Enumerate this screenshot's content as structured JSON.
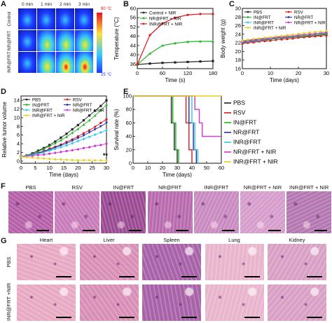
{
  "panels": {
    "A": {
      "label": "A",
      "times": [
        "0 min",
        "1 min",
        "2 min",
        "3 min"
      ],
      "rows": [
        "Control",
        "NR@FRT",
        "INR@FRT"
      ],
      "scale_max": "80 °C",
      "scale_min": "25 °C",
      "colors": {
        "cold": "#1e3cff",
        "mid": "#36c8ff",
        "warm": "#ffe040",
        "hot": "#e0141c"
      }
    },
    "B": {
      "label": "B"
    },
    "C": {
      "label": "C"
    },
    "D": {
      "label": "D"
    },
    "E": {
      "label": "E"
    },
    "F": {
      "label": "F",
      "groups": [
        "PBS",
        "RSV",
        "IN@FRT",
        "NR@FRT",
        "INR@FRT",
        "NR@FRT + NIR",
        "INR@FRT + NIR"
      ],
      "stain_colors": [
        "#b45fa8",
        "#c77bb8",
        "#9a4a92",
        "#b86aae",
        "#c88ac0",
        "#d59ccc",
        "#b376b0"
      ]
    },
    "G": {
      "label": "G",
      "organs": [
        "Heart",
        "Liver",
        "Spleen",
        "Lung",
        "Kidney"
      ],
      "rows": [
        "PBS",
        "INR@FRT +NIR"
      ],
      "stain_colors": [
        "#e8a9c2",
        "#d88fb6",
        "#a862a8",
        "#e9b5cc",
        "#d7a0c4"
      ]
    }
  },
  "chart_data": [
    {
      "panel": "B",
      "type": "line",
      "xlabel": "Time (s)",
      "ylabel": "Temperature (°C)",
      "xlim": [
        0,
        180
      ],
      "ylim": [
        34,
        60
      ],
      "xticks": [
        0,
        60,
        120,
        180
      ],
      "yticks": [
        36,
        40,
        44,
        48,
        52,
        56,
        60
      ],
      "legend_position": "top-left",
      "series": [
        {
          "name": "Control + NIR",
          "color": "#222222",
          "marker": "square",
          "x": [
            0,
            30,
            60,
            90,
            120,
            150,
            180
          ],
          "y": [
            35.8,
            36.2,
            36.5,
            36.7,
            36.9,
            37.1,
            37.3
          ]
        },
        {
          "name": "NR@FRT + NIR",
          "color": "#22b422",
          "marker": "triangle",
          "x": [
            0,
            30,
            60,
            90,
            120,
            150,
            180
          ],
          "y": [
            35.8,
            40.5,
            44.0,
            45.0,
            45.6,
            45.8,
            45.8
          ]
        },
        {
          "name": "INR@FRT + NIR",
          "color": "#e0141c",
          "marker": "circle",
          "x": [
            0,
            30,
            60,
            90,
            120,
            150,
            180
          ],
          "y": [
            35.8,
            48.5,
            53.5,
            56.0,
            57.2,
            57.6,
            57.6
          ]
        }
      ]
    },
    {
      "panel": "C",
      "type": "line",
      "xlabel": "Time (days)",
      "ylabel": "Body weight (g)",
      "xlim": [
        0,
        30
      ],
      "ylim": [
        16,
        30
      ],
      "xticks": [
        0,
        10,
        20,
        30
      ],
      "yticks": [
        16,
        18,
        20,
        22,
        24,
        26,
        28,
        30
      ],
      "legend_position": "top",
      "series": [
        {
          "name": "PBS",
          "color": "#222222",
          "x": [
            0,
            2,
            4,
            6,
            8,
            10,
            12,
            14,
            16,
            18,
            20,
            22,
            24,
            26,
            28,
            30
          ],
          "y": [
            22.0,
            22.2,
            22.3,
            22.5,
            22.6,
            22.8,
            23.0,
            23.1,
            23.2,
            23.3,
            23.4,
            23.5,
            23.6,
            23.7,
            23.8,
            24.0
          ]
        },
        {
          "name": "RSV",
          "color": "#e0141c",
          "x": [
            0,
            2,
            4,
            6,
            8,
            10,
            12,
            14,
            16,
            18,
            20,
            22,
            24,
            26,
            28,
            30
          ],
          "y": [
            21.8,
            22.0,
            22.1,
            22.3,
            22.4,
            22.5,
            22.7,
            22.8,
            22.9,
            23.0,
            23.2,
            23.3,
            23.4,
            23.5,
            23.6,
            23.7
          ]
        },
        {
          "name": "IN@FRT",
          "color": "#22b422",
          "x": [
            0,
            2,
            4,
            6,
            8,
            10,
            12,
            14,
            16,
            18,
            20,
            22,
            24,
            26,
            28,
            30
          ],
          "y": [
            22.2,
            22.4,
            22.5,
            22.6,
            22.8,
            22.9,
            23.0,
            23.2,
            23.3,
            23.4,
            23.5,
            23.6,
            23.8,
            23.9,
            24.0,
            24.1
          ]
        },
        {
          "name": "NR@FRT",
          "color": "#1f2fa8",
          "x": [
            0,
            2,
            4,
            6,
            8,
            10,
            12,
            14,
            16,
            18,
            20,
            22,
            24,
            26,
            28,
            30
          ],
          "y": [
            22.4,
            22.6,
            22.7,
            22.9,
            23.0,
            23.1,
            23.3,
            23.4,
            23.5,
            23.6,
            23.8,
            23.9,
            24.0,
            24.1,
            24.2,
            24.3
          ]
        },
        {
          "name": "INR@FRT",
          "color": "#2ec8e8",
          "x": [
            0,
            2,
            4,
            6,
            8,
            10,
            12,
            14,
            16,
            18,
            20,
            22,
            24,
            26,
            28,
            30
          ],
          "y": [
            22.1,
            22.3,
            22.5,
            22.6,
            22.8,
            23.0,
            23.1,
            23.3,
            23.4,
            23.6,
            23.7,
            23.8,
            24.0,
            24.1,
            24.2,
            24.4
          ]
        },
        {
          "name": "NR@FRT + NIR",
          "color": "#d431d4",
          "x": [
            0,
            2,
            4,
            6,
            8,
            10,
            12,
            14,
            16,
            18,
            20,
            22,
            24,
            26,
            28,
            30
          ],
          "y": [
            22.3,
            22.5,
            22.6,
            22.8,
            22.9,
            23.1,
            23.2,
            23.3,
            23.5,
            23.6,
            23.7,
            23.9,
            24.0,
            24.1,
            24.3,
            24.4
          ]
        },
        {
          "name": "INR@FRT + NIR",
          "color": "#e6d21e",
          "x": [
            0,
            2,
            4,
            6,
            8,
            10,
            12,
            14,
            16,
            18,
            20,
            22,
            24,
            26,
            28,
            30
          ],
          "y": [
            22.5,
            22.7,
            22.9,
            23.0,
            23.2,
            23.3,
            23.5,
            23.6,
            23.8,
            23.9,
            24.1,
            24.2,
            24.4,
            24.5,
            24.6,
            24.8
          ]
        }
      ]
    },
    {
      "panel": "D",
      "type": "line",
      "xlabel": "Time (days)",
      "ylabel": "Relative tumor volume",
      "xlim": [
        0,
        30
      ],
      "ylim": [
        -0.5,
        15
      ],
      "xticks": [
        0,
        5,
        10,
        15,
        20,
        25,
        30
      ],
      "yticks": [
        0,
        2,
        4,
        6,
        8,
        10,
        12,
        14
      ],
      "legend_position": "top-left",
      "annotation": "**",
      "series": [
        {
          "name": "PBS",
          "color": "#222222",
          "x": [
            0,
            2,
            4,
            6,
            8,
            10,
            12,
            14,
            16,
            18,
            20,
            22,
            24,
            26,
            28,
            30
          ],
          "y": [
            1.0,
            1.3,
            1.8,
            2.4,
            3.0,
            3.7,
            4.5,
            5.4,
            6.3,
            7.3,
            8.3,
            9.4,
            10.5,
            11.6,
            12.7,
            14.0
          ]
        },
        {
          "name": "RSV",
          "color": "#e0141c",
          "x": [
            0,
            2,
            4,
            6,
            8,
            10,
            12,
            14,
            16,
            18,
            20,
            22,
            24,
            26,
            28,
            30
          ],
          "y": [
            1.0,
            1.2,
            1.5,
            1.9,
            2.3,
            2.8,
            3.3,
            3.8,
            4.4,
            5.0,
            5.7,
            6.4,
            7.1,
            7.9,
            8.8,
            9.6
          ]
        },
        {
          "name": "IN@FRT",
          "color": "#22b422",
          "x": [
            0,
            2,
            4,
            6,
            8,
            10,
            12,
            14,
            16,
            18,
            20,
            22,
            24,
            26,
            28,
            30
          ],
          "y": [
            1.0,
            1.3,
            1.7,
            2.2,
            2.8,
            3.4,
            4.1,
            4.8,
            5.6,
            6.5,
            7.4,
            8.4,
            9.4,
            10.5,
            11.7,
            13.0
          ]
        },
        {
          "name": "NR@FRT",
          "color": "#1f2fa8",
          "x": [
            0,
            2,
            4,
            6,
            8,
            10,
            12,
            14,
            16,
            18,
            20,
            22,
            24,
            26,
            28,
            30
          ],
          "y": [
            1.0,
            1.2,
            1.5,
            1.8,
            2.2,
            2.6,
            3.1,
            3.6,
            4.1,
            4.7,
            5.3,
            5.9,
            6.6,
            7.3,
            8.0,
            8.8
          ]
        },
        {
          "name": "INR@FRT",
          "color": "#2ec8e8",
          "x": [
            0,
            2,
            4,
            6,
            8,
            10,
            12,
            14,
            16,
            18,
            20,
            22,
            24,
            26,
            28,
            30
          ],
          "y": [
            1.0,
            1.2,
            1.4,
            1.7,
            2.0,
            2.4,
            2.8,
            3.2,
            3.6,
            4.1,
            4.6,
            5.1,
            5.6,
            6.1,
            6.6,
            7.1
          ]
        },
        {
          "name": "NR@FRT + NIR",
          "color": "#d431d4",
          "x": [
            0,
            2,
            4,
            6,
            8,
            10,
            12,
            14,
            16,
            18,
            20,
            22,
            24,
            26,
            28,
            30
          ],
          "y": [
            1.0,
            1.1,
            1.2,
            1.4,
            1.5,
            1.7,
            1.9,
            2.1,
            2.3,
            2.5,
            2.7,
            3.0,
            3.2,
            3.5,
            3.7,
            4.0
          ]
        },
        {
          "name": "INR@FRT + NIR",
          "color": "#e6d21e",
          "x": [
            0,
            2,
            4,
            6,
            8,
            10,
            12,
            14,
            16,
            18,
            20,
            22,
            24,
            26,
            28,
            30
          ],
          "y": [
            1.0,
            0.9,
            0.8,
            0.7,
            0.6,
            0.5,
            0.4,
            0.35,
            0.3,
            0.25,
            0.2,
            0.2,
            0.2,
            0.15,
            0.15,
            0.1
          ]
        }
      ]
    },
    {
      "panel": "E",
      "type": "line",
      "xlabel": "Time (days)",
      "ylabel": "Survival rate (%)",
      "xlim": [
        0,
        60
      ],
      "ylim": [
        0,
        100
      ],
      "xticks": [
        0,
        10,
        20,
        30,
        40,
        50,
        60
      ],
      "yticks": [
        0,
        20,
        40,
        60,
        80,
        100
      ],
      "legend_position": "right",
      "series": [
        {
          "name": "PBS",
          "color": "#222222",
          "x": [
            0,
            26,
            26,
            28,
            28,
            30,
            30
          ],
          "y": [
            100,
            100,
            60,
            60,
            20,
            20,
            0
          ]
        },
        {
          "name": "RSV",
          "color": "#e0141c",
          "x": [
            0,
            36,
            36,
            38,
            38,
            40,
            40
          ],
          "y": [
            100,
            100,
            60,
            60,
            20,
            20,
            0
          ]
        },
        {
          "name": "IN@FRT",
          "color": "#22b422",
          "x": [
            0,
            27,
            27,
            29,
            29,
            31,
            31
          ],
          "y": [
            100,
            100,
            60,
            60,
            20,
            20,
            0
          ]
        },
        {
          "name": "NR@FRT",
          "color": "#1f2fa8",
          "x": [
            0,
            38,
            38,
            41,
            41,
            43,
            43
          ],
          "y": [
            100,
            100,
            60,
            60,
            20,
            20,
            0
          ]
        },
        {
          "name": "INR@FRT",
          "color": "#2ec8e8",
          "x": [
            0,
            40,
            40,
            42,
            42,
            44,
            44
          ],
          "y": [
            100,
            100,
            60,
            60,
            20,
            20,
            0
          ]
        },
        {
          "name": "NR@FRT + NIR",
          "color": "#d431d4",
          "x": [
            0,
            42,
            42,
            45,
            45,
            47,
            47,
            60
          ],
          "y": [
            100,
            100,
            80,
            80,
            60,
            60,
            40,
            40
          ]
        },
        {
          "name": "INR@FRT + NIR",
          "color": "#e6d21e",
          "x": [
            0,
            60
          ],
          "y": [
            100,
            100
          ]
        }
      ]
    }
  ]
}
